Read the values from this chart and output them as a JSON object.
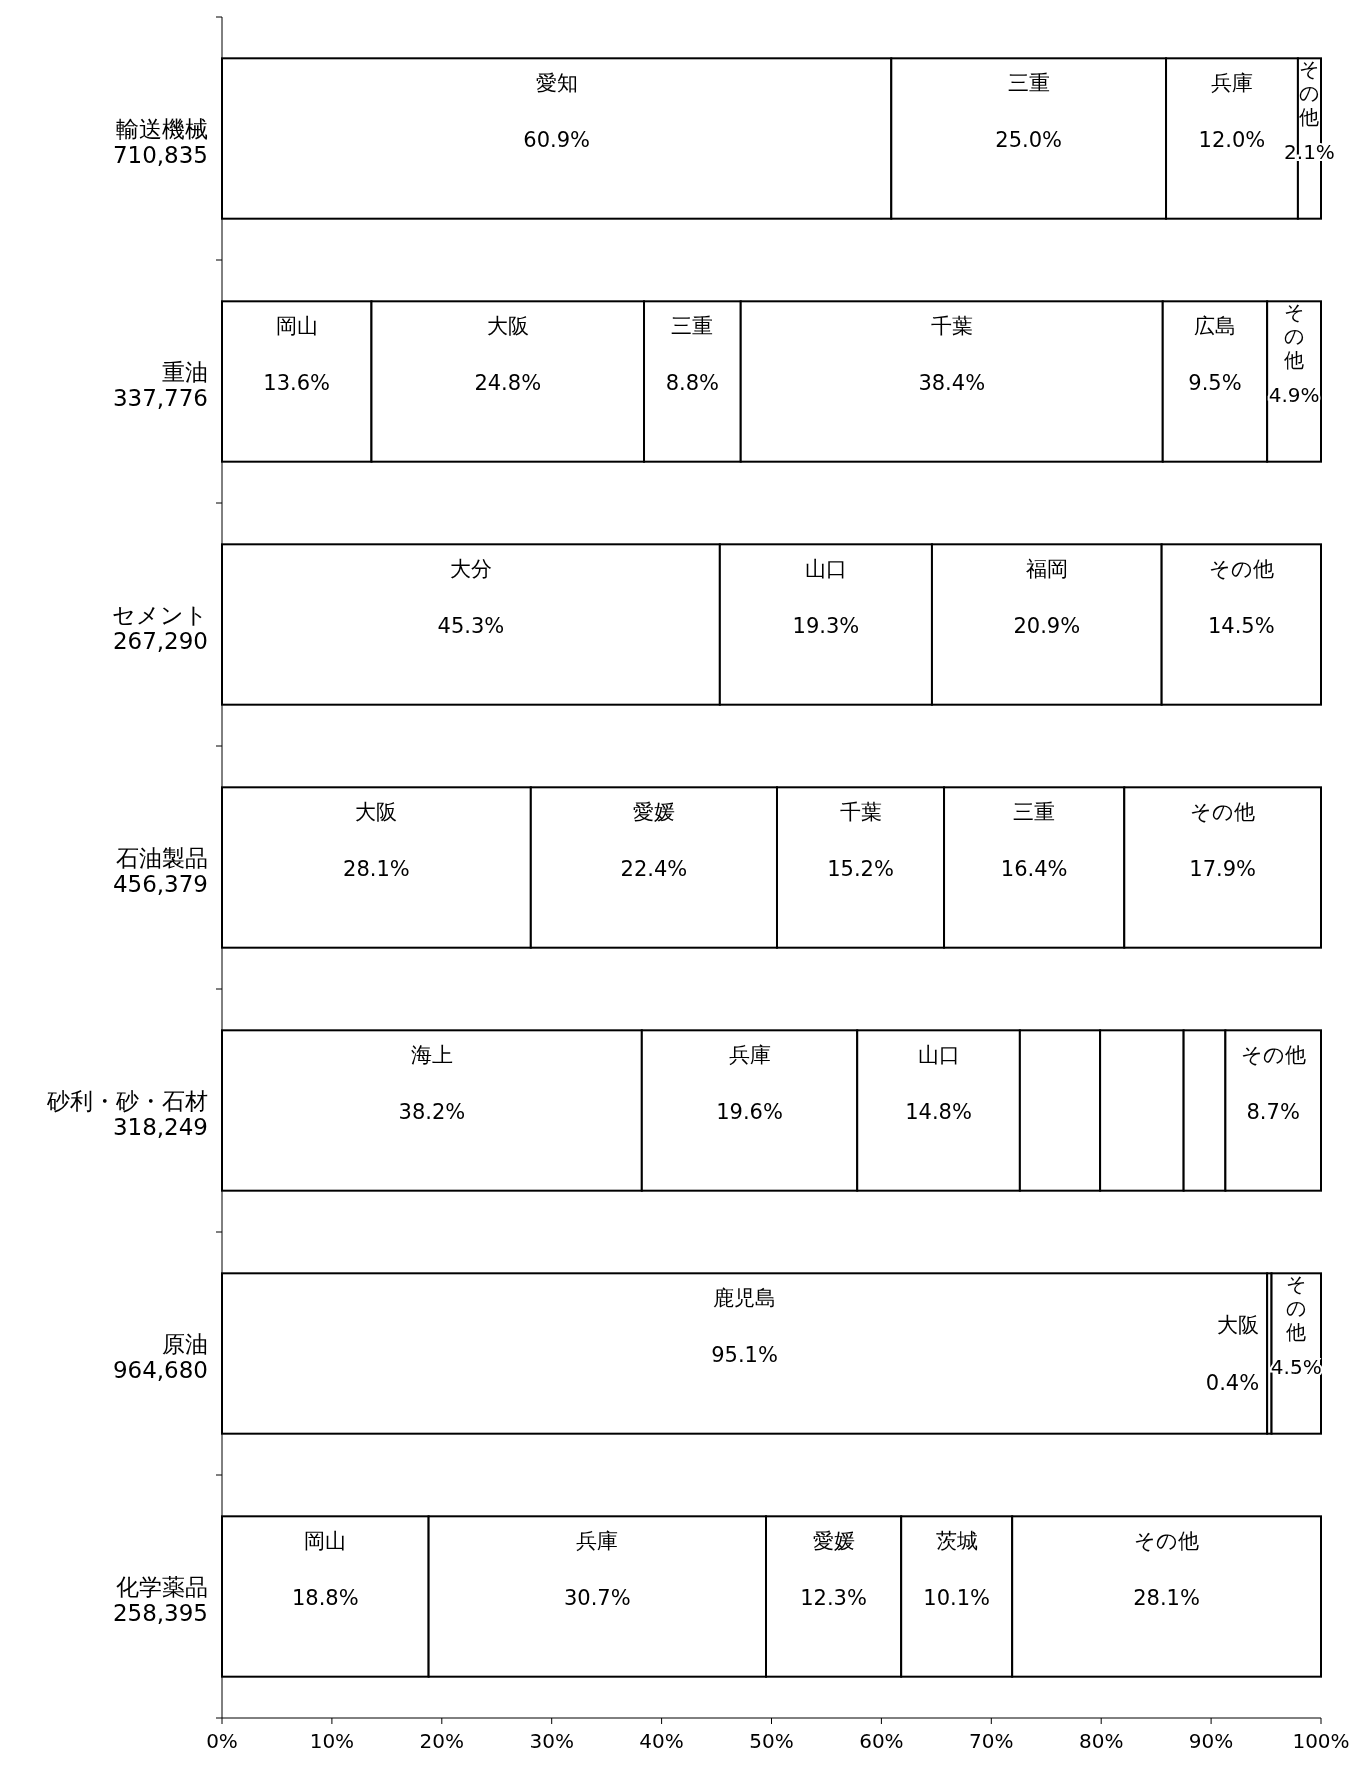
{
  "chart_data": {
    "type": "bar",
    "orientation": "horizontal",
    "stacked": true,
    "categories": [
      "輸送機械\n710,835",
      "重油\n337,776",
      "セメント\n267,290",
      "石油製品\n456,379",
      "砂利・砂・石材\n318,249",
      "原油\n964,680",
      "化学薬品\n258,395"
    ],
    "xlim": [
      0,
      100
    ],
    "xticks": [
      {
        "value": 0,
        "label": "0%"
      },
      {
        "value": 10,
        "label": "10%"
      },
      {
        "value": 20,
        "label": "20%"
      },
      {
        "value": 30,
        "label": "30%"
      },
      {
        "value": 40,
        "label": "40%"
      },
      {
        "value": 50,
        "label": "50%"
      },
      {
        "value": 60,
        "label": "60%"
      },
      {
        "value": 70,
        "label": "70%"
      },
      {
        "value": 80,
        "label": "80%"
      },
      {
        "value": 90,
        "label": "90%"
      },
      {
        "value": 100,
        "label": "100%"
      }
    ],
    "series": [
      {
        "color": "#ffffff",
        "values": [
          60.9,
          13.6,
          45.3,
          28.1,
          38.2,
          95.1,
          18.8
        ],
        "value_labels": [
          "愛知\n60.9%",
          "岡山\n13.6%",
          "大分\n45.3%",
          "大阪\n28.1%",
          "海上\n38.2%",
          "鹿児島\n95.1%",
          "岡山\n18.8%"
        ]
      },
      {
        "color": "#ffffff",
        "values": [
          25.0,
          24.8,
          19.3,
          22.4,
          19.6,
          0.4,
          30.7
        ],
        "value_labels": [
          "三重\n25.0%",
          "大阪\n24.8%",
          "山口\n19.3%",
          "愛媛\n22.4%",
          "兵庫\n19.6%",
          "大阪\n0.4%",
          "兵庫\n30.7%"
        ]
      },
      {
        "color": "#ffffff",
        "values": [
          12.0,
          8.8,
          20.9,
          15.2,
          14.8,
          4.5,
          12.3
        ],
        "value_labels": [
          "兵庫\n12.0%",
          "三重\n8.8%",
          "福岡\n20.9%",
          "千葉\n15.2%",
          "山口\n14.8%",
          "その他\n4.5%",
          "愛媛\n12.3%"
        ]
      },
      {
        "color": "#ffffff",
        "values": [
          2.1,
          38.4,
          14.5,
          16.4,
          7.3,
          null,
          10.1
        ],
        "value_labels": [
          "その他\n2.1%",
          "千葉\n38.4%",
          "その他\n14.5%",
          "三重\n16.4%",
          null,
          null,
          "茨城\n10.1%"
        ]
      },
      {
        "color": "#ffffff",
        "values": [
          null,
          9.5,
          null,
          17.9,
          7.6,
          null,
          28.1
        ],
        "value_labels": [
          null,
          "広島\n9.5%",
          null,
          "その他\n17.9%",
          null,
          null,
          "その他\n28.1%"
        ]
      },
      {
        "color": "#ffffff",
        "values": [
          null,
          4.9,
          null,
          null,
          3.8,
          null,
          null
        ],
        "value_labels": [
          null,
          "その他\n4.9%",
          null,
          null,
          null,
          null,
          null
        ]
      },
      {
        "color": "#ffffff",
        "values": [
          null,
          null,
          null,
          null,
          8.7,
          null,
          null
        ],
        "value_labels": [
          null,
          null,
          null,
          null,
          "その他\n8.7%",
          null,
          null
        ]
      }
    ]
  }
}
